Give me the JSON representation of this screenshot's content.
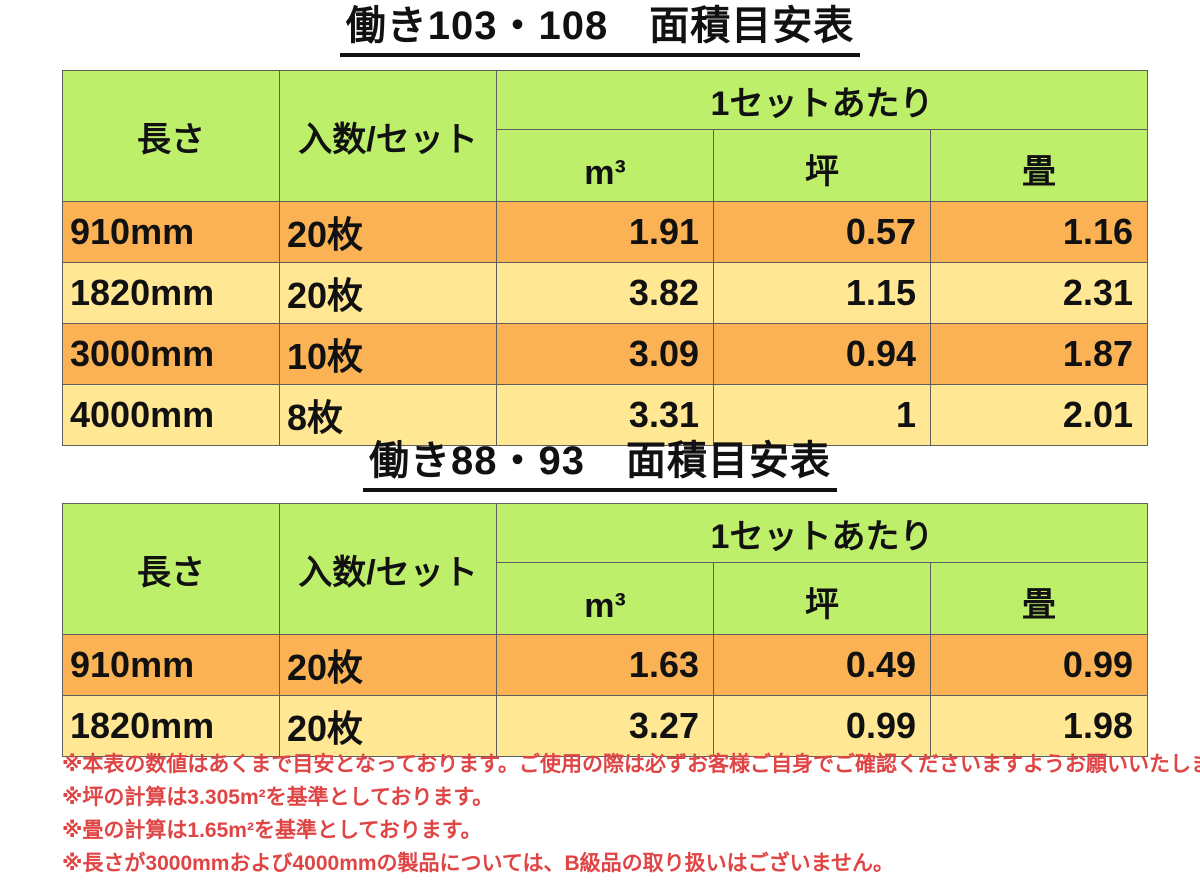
{
  "colors": {
    "header_green": "#BDEF6B",
    "row_orange": "#FAB255",
    "row_yellow": "#FFE794",
    "border_gray": "#5f5f5f",
    "note_red": "#E04545",
    "title_black": "#111111"
  },
  "tables": [
    {
      "title": "働き103・108　面積目安表",
      "header": {
        "length": "長さ",
        "count_per_set": "入数/セット",
        "per_set_group": "1セットあたり",
        "unit_m3": "m³",
        "unit_tsubo": "坪",
        "unit_jou": "畳"
      },
      "rows": [
        {
          "length": "910mm",
          "count": "20枚",
          "m3": "1.91",
          "tsubo": "0.57",
          "jou": "1.16"
        },
        {
          "length": "1820mm",
          "count": "20枚",
          "m3": "3.82",
          "tsubo": "1.15",
          "jou": "2.31"
        },
        {
          "length": "3000mm",
          "count": "10枚",
          "m3": "3.09",
          "tsubo": "0.94",
          "jou": "1.87"
        },
        {
          "length": "4000mm",
          "count": "8枚",
          "m3": "3.31",
          "tsubo": "1",
          "jou": "2.01"
        }
      ]
    },
    {
      "title": "働き88・93　面積目安表",
      "header": {
        "length": "長さ",
        "count_per_set": "入数/セット",
        "per_set_group": "1セットあたり",
        "unit_m3": "m³",
        "unit_tsubo": "坪",
        "unit_jou": "畳"
      },
      "rows": [
        {
          "length": "910mm",
          "count": "20枚",
          "m3": "1.63",
          "tsubo": "0.49",
          "jou": "0.99"
        },
        {
          "length": "1820mm",
          "count": "20枚",
          "m3": "3.27",
          "tsubo": "0.99",
          "jou": "1.98"
        }
      ]
    }
  ],
  "notes": [
    "※本表の数値はあくまで目安となっております。ご使用の際は必ずお客様ご自身でご確認くださいますようお願いいたします。",
    "※坪の計算は3.305m²を基準としております。",
    "※畳の計算は1.65m²を基準としております。",
    "※長さが3000mmおよび4000mmの製品については、B級品の取り扱いはございません。"
  ]
}
